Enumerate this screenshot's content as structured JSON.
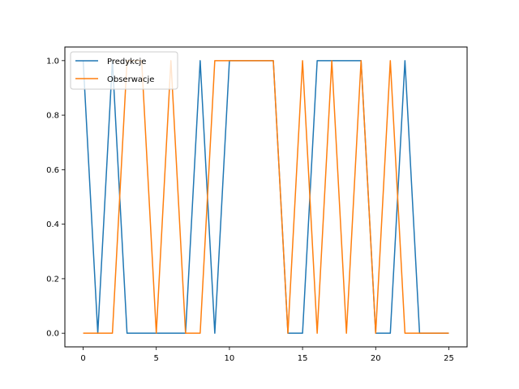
{
  "chart_data": {
    "type": "line",
    "title": "",
    "xlabel": "",
    "ylabel": "",
    "xlim": [
      -1.25,
      26.25
    ],
    "ylim": [
      -0.05,
      1.05
    ],
    "xticks": [
      0,
      5,
      10,
      15,
      20,
      25
    ],
    "xtick_labels": [
      "0",
      "5",
      "10",
      "15",
      "20",
      "25"
    ],
    "yticks": [
      0.0,
      0.2,
      0.4,
      0.6,
      0.8,
      1.0
    ],
    "ytick_labels": [
      "0.0",
      "0.2",
      "0.4",
      "0.6",
      "0.8",
      "1.0"
    ],
    "grid": false,
    "legend_position": "upper-left",
    "x": [
      0,
      1,
      2,
      3,
      4,
      5,
      6,
      7,
      8,
      9,
      10,
      11,
      12,
      13,
      14,
      15,
      16,
      17,
      18,
      19,
      20,
      21,
      22,
      23,
      24,
      25
    ],
    "series": [
      {
        "name": "Predykcje",
        "color": "#1f77b4",
        "values": [
          1,
          0,
          1,
          0,
          0,
          0,
          0,
          0,
          1,
          0,
          1,
          1,
          1,
          1,
          0,
          0,
          1,
          1,
          1,
          1,
          0,
          0,
          1,
          0,
          0,
          0
        ]
      },
      {
        "name": "Obserwacje",
        "color": "#ff7f0e",
        "values": [
          0,
          0,
          0,
          1,
          1,
          0,
          1,
          0,
          0,
          1,
          1,
          1,
          1,
          1,
          0,
          1,
          0,
          1,
          0,
          1,
          0,
          1,
          0,
          0,
          0,
          0
        ]
      }
    ]
  }
}
